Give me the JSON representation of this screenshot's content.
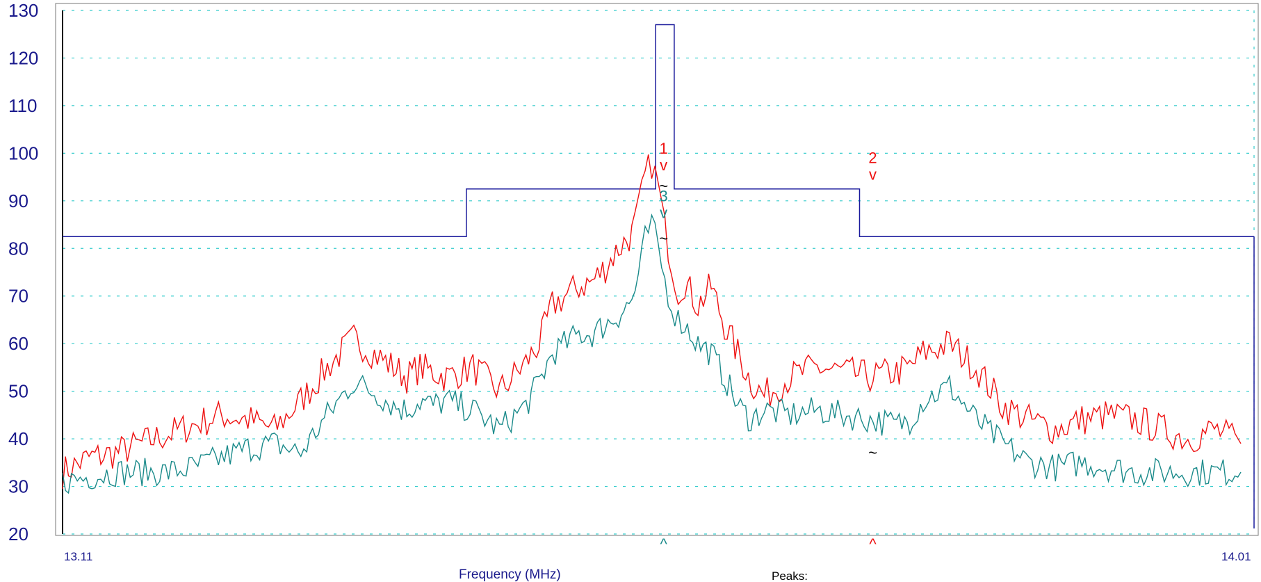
{
  "chart_data": {
    "type": "line",
    "xlabel": "Frequency (MHz)",
    "x_tick_labels": [
      "13.11",
      "14.01"
    ],
    "xlim": [
      13.11,
      14.01
    ],
    "ylim": [
      20,
      130
    ],
    "y_ticks": [
      20,
      30,
      40,
      50,
      60,
      70,
      80,
      90,
      100,
      110,
      120,
      130
    ],
    "grid": true,
    "peaks_label": "Peaks:",
    "colors": {
      "axis_text": "#1a1a8c",
      "grid": "#33cccc",
      "limit": "#1a1a9c",
      "red": "#ee1111",
      "teal": "#1a8a8a"
    },
    "limit_line": {
      "x": [
        13.11,
        13.415,
        13.415,
        13.558,
        13.558,
        13.572,
        13.572,
        13.712,
        13.712,
        14.01
      ],
      "y": [
        82.5,
        82.5,
        92.5,
        92.5,
        127,
        127,
        92.5,
        92.5,
        82.5,
        82.5
      ]
    },
    "series_red": {
      "x": [
        13.11,
        13.13,
        13.15,
        13.17,
        13.19,
        13.21,
        13.23,
        13.25,
        13.27,
        13.29,
        13.31,
        13.33,
        13.35,
        13.36,
        13.37,
        13.38,
        13.39,
        13.4,
        13.42,
        13.44,
        13.46,
        13.47,
        13.48,
        13.5,
        13.51,
        13.52,
        13.53,
        13.54,
        13.545,
        13.55,
        13.555,
        13.56,
        13.565,
        13.57,
        13.575,
        13.58,
        13.59,
        13.6,
        13.61,
        13.62,
        13.63,
        13.64,
        13.66,
        13.68,
        13.7,
        13.72,
        13.74,
        13.75,
        13.76,
        13.78,
        13.8,
        13.82,
        13.84,
        13.86,
        13.88,
        13.9,
        13.92,
        13.94,
        13.96,
        13.98,
        14.0
      ],
      "y": [
        33,
        36,
        37,
        39,
        41,
        43,
        45,
        44,
        42,
        48,
        55,
        61,
        57,
        55,
        53,
        55,
        54,
        53,
        55,
        50,
        56,
        60,
        68,
        72,
        73,
        76,
        80,
        83,
        88,
        95,
        98,
        93,
        84,
        77,
        71,
        73,
        68,
        72,
        64,
        58,
        52,
        49,
        53,
        55,
        54,
        53,
        54,
        55,
        58,
        60,
        55,
        47,
        44,
        42,
        44,
        45,
        44,
        42,
        40,
        42,
        39
      ],
      "markers": [
        {
          "label": "1",
          "x": 13.564,
          "y": 97
        },
        {
          "label": "2",
          "x": 13.722,
          "y": 95
        }
      ]
    },
    "series_teal": {
      "x": [
        13.11,
        13.13,
        13.15,
        13.17,
        13.19,
        13.21,
        13.23,
        13.25,
        13.27,
        13.29,
        13.31,
        13.33,
        13.35,
        13.36,
        13.37,
        13.38,
        13.39,
        13.4,
        13.42,
        13.44,
        13.46,
        13.47,
        13.48,
        13.5,
        13.51,
        13.52,
        13.53,
        13.54,
        13.545,
        13.55,
        13.555,
        13.56,
        13.565,
        13.57,
        13.575,
        13.58,
        13.59,
        13.6,
        13.61,
        13.62,
        13.63,
        13.64,
        13.66,
        13.68,
        13.7,
        13.72,
        13.74,
        13.75,
        13.76,
        13.78,
        13.8,
        13.82,
        13.84,
        13.86,
        13.88,
        13.9,
        13.92,
        13.94,
        13.96,
        13.98,
        14.0
      ],
      "y": [
        31,
        32,
        33,
        33,
        33,
        34,
        36,
        38,
        39,
        37,
        45,
        52,
        49,
        47,
        46,
        48,
        47,
        48,
        46,
        42,
        47,
        52,
        58,
        62,
        62,
        64,
        66,
        69,
        74,
        82,
        85,
        80,
        73,
        68,
        65,
        64,
        60,
        58,
        53,
        47,
        44,
        46,
        45,
        46,
        45,
        44,
        43,
        44,
        48,
        51,
        44,
        39,
        35,
        34,
        35,
        34,
        33,
        33,
        33,
        33,
        33
      ],
      "markers": [
        {
          "label": "3",
          "x": 13.564,
          "y": 87
        }
      ]
    },
    "tilde_markers": [
      {
        "x": 13.564,
        "y": 92
      },
      {
        "x": 13.564,
        "y": 81
      },
      {
        "x": 13.722,
        "y": 36
      }
    ],
    "bottom_carets": [
      {
        "x": 13.564,
        "series": "teal"
      },
      {
        "x": 13.722,
        "series": "red"
      }
    ]
  }
}
